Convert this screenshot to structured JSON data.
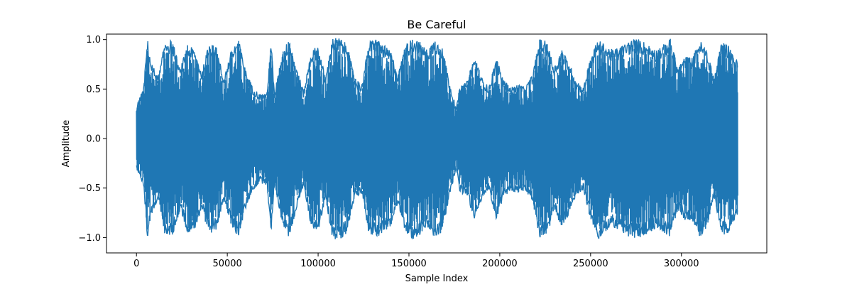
{
  "chart_data": {
    "type": "line",
    "title": "Be Careful",
    "xlabel": "Sample Index",
    "ylabel": "Amplitude",
    "xlim": [
      -16500,
      347000
    ],
    "ylim": [
      -1.155,
      1.055
    ],
    "x_ticks": [
      0,
      50000,
      100000,
      150000,
      200000,
      250000,
      300000
    ],
    "x_tick_labels": [
      "0",
      "50000",
      "100000",
      "150000",
      "200000",
      "250000",
      "300000"
    ],
    "y_ticks": [
      -1.0,
      -0.5,
      0.0,
      0.5,
      1.0
    ],
    "y_tick_labels": [
      "−1.0",
      "−0.5",
      "0.0",
      "0.5",
      "1.0"
    ],
    "grid": false,
    "legend": "none",
    "series": [
      {
        "color": "#1f77b4",
        "sample_count": 331000,
        "envelope_x": [
          0,
          4000,
          6000,
          8000,
          12000,
          16000,
          20000,
          24000,
          28000,
          32000,
          36000,
          40000,
          44000,
          48000,
          52000,
          56000,
          60000,
          64000,
          68000,
          72000,
          74000,
          76000,
          80000,
          84000,
          88000,
          92000,
          96000,
          100000,
          104000,
          108000,
          112000,
          116000,
          120000,
          124000,
          128000,
          132000,
          136000,
          140000,
          144000,
          148000,
          152000,
          156000,
          160000,
          164000,
          168000,
          172000,
          176000,
          178000,
          182000,
          186000,
          190000,
          194000,
          198000,
          202000,
          206000,
          210000,
          214000,
          218000,
          222000,
          226000,
          230000,
          234000,
          238000,
          242000,
          246000,
          250000,
          254000,
          258000,
          262000,
          266000,
          270000,
          274000,
          278000,
          282000,
          286000,
          290000,
          294000,
          298000,
          302000,
          306000,
          310000,
          314000,
          318000,
          322000,
          326000,
          330000
        ],
        "envelope_upper": [
          0.33,
          0.52,
          1.02,
          0.78,
          0.62,
          1.02,
          0.98,
          0.7,
          0.95,
          0.9,
          0.68,
          0.97,
          0.92,
          0.62,
          0.88,
          1.02,
          0.7,
          0.52,
          0.45,
          0.47,
          1.02,
          0.45,
          0.85,
          1.02,
          0.72,
          0.48,
          0.88,
          0.95,
          0.62,
          1.02,
          1.02,
          0.95,
          0.62,
          0.55,
          0.98,
          1.02,
          0.95,
          0.88,
          0.65,
          0.95,
          1.02,
          0.98,
          0.9,
          1.01,
          0.95,
          0.6,
          0.3,
          0.52,
          0.58,
          0.83,
          0.62,
          0.52,
          0.82,
          0.6,
          0.52,
          0.55,
          0.52,
          0.65,
          1.01,
          0.98,
          0.73,
          0.9,
          0.78,
          0.58,
          0.52,
          0.82,
          1.0,
          0.95,
          0.9,
          0.92,
          0.98,
          1.01,
          1.0,
          0.95,
          0.9,
          0.95,
          1.01,
          0.72,
          0.83,
          0.82,
          1.0,
          0.9,
          0.6,
          0.98,
          0.95,
          0.8
        ],
        "envelope_lower": [
          -0.3,
          -0.48,
          -1.02,
          -0.78,
          -0.62,
          -1.0,
          -0.98,
          -0.72,
          -0.95,
          -0.92,
          -0.72,
          -0.97,
          -0.92,
          -0.62,
          -0.88,
          -1.0,
          -0.72,
          -0.52,
          -0.45,
          -0.47,
          -1.0,
          -0.45,
          -0.85,
          -1.01,
          -0.72,
          -0.48,
          -0.88,
          -0.95,
          -0.62,
          -1.02,
          -1.02,
          -0.95,
          -0.6,
          -0.55,
          -0.98,
          -1.0,
          -0.95,
          -0.9,
          -0.65,
          -0.95,
          -1.02,
          -0.98,
          -0.9,
          -1.01,
          -0.95,
          -0.62,
          -0.3,
          -0.55,
          -0.58,
          -0.83,
          -0.62,
          -0.52,
          -0.82,
          -0.6,
          -0.52,
          -0.55,
          -0.52,
          -0.65,
          -1.0,
          -0.98,
          -0.73,
          -0.9,
          -0.78,
          -0.58,
          -0.52,
          -0.82,
          -1.03,
          -0.95,
          -0.9,
          -0.92,
          -0.98,
          -1.0,
          -1.0,
          -0.95,
          -0.9,
          -0.95,
          -1.0,
          -0.72,
          -0.83,
          -0.82,
          -1.0,
          -0.9,
          -0.6,
          -0.98,
          -0.95,
          -0.8
        ]
      }
    ]
  }
}
